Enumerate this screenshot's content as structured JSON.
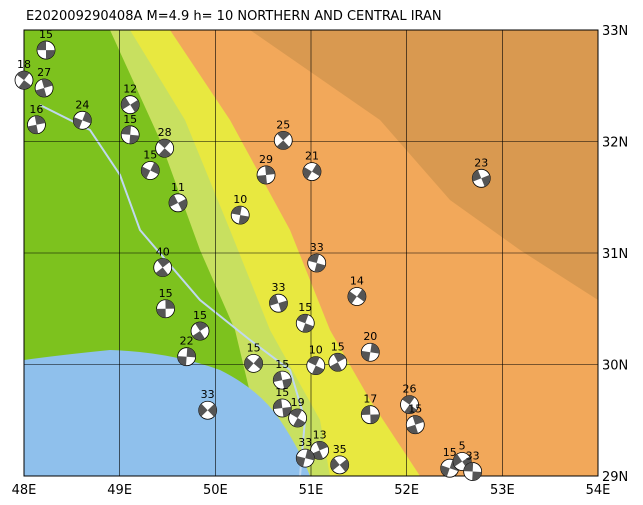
{
  "map": {
    "title": "E202009290408A M=4.9 h= 10 NORTHERN AND CENTRAL IRAN",
    "lonlim": [
      48,
      54
    ],
    "latlim": [
      29,
      33
    ],
    "lonticks": [
      {
        "value": 48,
        "label": "48E"
      },
      {
        "value": 49,
        "label": "49E"
      },
      {
        "value": 50,
        "label": "50E"
      },
      {
        "value": 51,
        "label": "51E"
      },
      {
        "value": 52,
        "label": "52E"
      },
      {
        "value": 53,
        "label": "53E"
      },
      {
        "value": 54,
        "label": "54E"
      }
    ],
    "latticks": [
      {
        "value": 29,
        "label": "29N"
      },
      {
        "value": 30,
        "label": "30N"
      },
      {
        "value": 31,
        "label": "31N"
      },
      {
        "value": 32,
        "label": "32N"
      },
      {
        "value": 33,
        "label": "33N"
      }
    ],
    "events": [
      {
        "label": "15",
        "lon": 48.23,
        "lat": 32.82
      },
      {
        "label": "18",
        "lon": 48.0,
        "lat": 32.55
      },
      {
        "label": "27",
        "lon": 48.21,
        "lat": 32.48
      },
      {
        "label": "24",
        "lon": 48.61,
        "lat": 32.19
      },
      {
        "label": "12",
        "lon": 49.11,
        "lat": 32.33
      },
      {
        "label": "15",
        "lon": 49.11,
        "lat": 32.06
      },
      {
        "label": "28",
        "lon": 49.47,
        "lat": 31.94
      },
      {
        "label": "16",
        "lon": 48.13,
        "lat": 32.15
      },
      {
        "label": "15",
        "lon": 49.32,
        "lat": 31.74
      },
      {
        "label": "11",
        "lon": 49.61,
        "lat": 31.45
      },
      {
        "label": "10",
        "lon": 50.26,
        "lat": 31.34
      },
      {
        "label": "25",
        "lon": 50.71,
        "lat": 32.01
      },
      {
        "label": "29",
        "lon": 50.53,
        "lat": 31.7
      },
      {
        "label": "21",
        "lon": 51.01,
        "lat": 31.73
      },
      {
        "label": "23",
        "lon": 52.78,
        "lat": 31.67
      },
      {
        "label": "33",
        "lon": 51.06,
        "lat": 30.91
      },
      {
        "label": "40",
        "lon": 49.45,
        "lat": 30.87
      },
      {
        "label": "15",
        "lon": 49.48,
        "lat": 30.5
      },
      {
        "label": "14",
        "lon": 51.48,
        "lat": 30.61
      },
      {
        "label": "33",
        "lon": 50.66,
        "lat": 30.55
      },
      {
        "label": "15",
        "lon": 50.94,
        "lat": 30.37
      },
      {
        "label": "15",
        "lon": 49.84,
        "lat": 30.3
      },
      {
        "label": "22",
        "lon": 49.7,
        "lat": 30.07
      },
      {
        "label": "15",
        "lon": 50.4,
        "lat": 30.01
      },
      {
        "label": "15",
        "lon": 50.7,
        "lat": 29.86
      },
      {
        "label": "10",
        "lon": 51.05,
        "lat": 29.99
      },
      {
        "label": "15",
        "lon": 51.28,
        "lat": 30.02
      },
      {
        "label": "20",
        "lon": 51.62,
        "lat": 30.11
      },
      {
        "label": "33",
        "lon": 49.92,
        "lat": 29.59
      },
      {
        "label": "15",
        "lon": 50.7,
        "lat": 29.61
      },
      {
        "label": "19",
        "lon": 50.86,
        "lat": 29.52
      },
      {
        "label": "13",
        "lon": 51.09,
        "lat": 29.23
      },
      {
        "label": "33",
        "lon": 50.94,
        "lat": 29.16
      },
      {
        "label": "35",
        "lon": 51.3,
        "lat": 29.1
      },
      {
        "label": "17",
        "lon": 51.62,
        "lat": 29.55
      },
      {
        "label": "26",
        "lon": 52.03,
        "lat": 29.64
      },
      {
        "label": "15",
        "lon": 52.09,
        "lat": 29.46
      },
      {
        "label": "15",
        "lon": 52.45,
        "lat": 29.07
      },
      {
        "label": "5",
        "lon": 52.58,
        "lat": 29.13
      },
      {
        "label": "33",
        "lon": 52.69,
        "lat": 29.04
      }
    ]
  }
}
